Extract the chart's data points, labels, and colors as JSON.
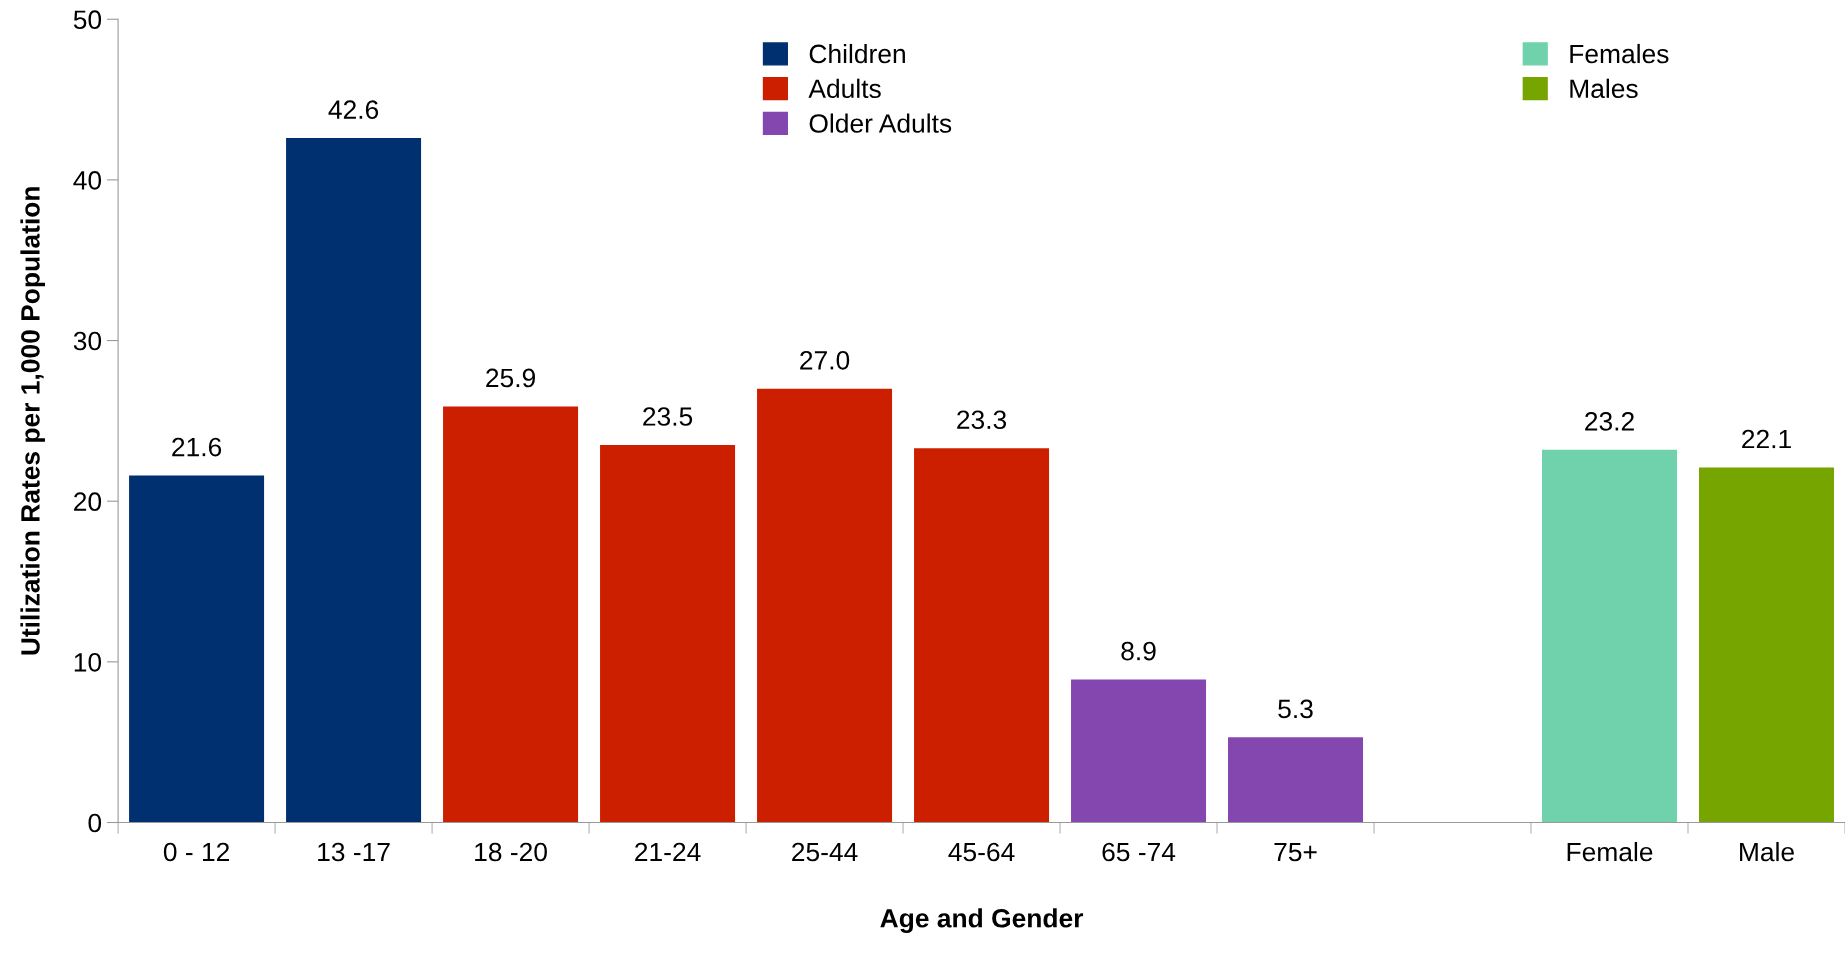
{
  "chart_data": {
    "type": "bar",
    "xlabel": "Age and Gender",
    "ylabel": "Utilization Rates per 1,000 Population",
    "categories": [
      "0 - 12",
      "13 -17",
      "18 -20",
      "21-24",
      "25-44",
      "45-64",
      "65 -74",
      "75+",
      null,
      "Female",
      "Male"
    ],
    "series": [
      {
        "name": "Children",
        "color": "#003070",
        "values": [
          21.6,
          42.6,
          null,
          null,
          null,
          null,
          null,
          null,
          null,
          null,
          null
        ]
      },
      {
        "name": "Adults",
        "color": "#cc1f00",
        "values": [
          null,
          null,
          25.9,
          23.5,
          27.0,
          23.3,
          null,
          null,
          null,
          null,
          null
        ],
        "value_labels": [
          null,
          null,
          "25.9",
          "23.5",
          "27.0",
          "23.3",
          null,
          null,
          null,
          null,
          null
        ]
      },
      {
        "name": "Older Adults",
        "color": "#8447b0",
        "values": [
          null,
          null,
          null,
          null,
          null,
          null,
          8.9,
          5.3,
          null,
          null,
          null
        ]
      },
      {
        "name": "Females",
        "color": "#70d1ad",
        "values": [
          null,
          null,
          null,
          null,
          null,
          null,
          null,
          null,
          null,
          23.2,
          null
        ]
      },
      {
        "name": "Males",
        "color": "#76a500",
        "values": [
          null,
          null,
          null,
          null,
          null,
          null,
          null,
          null,
          null,
          null,
          22.1
        ]
      }
    ],
    "stacked": true,
    "ylim": [
      0,
      50
    ],
    "yticks": [
      0,
      10,
      20,
      30,
      40,
      50
    ],
    "grid": false,
    "legend": "top",
    "data_labels": true
  }
}
